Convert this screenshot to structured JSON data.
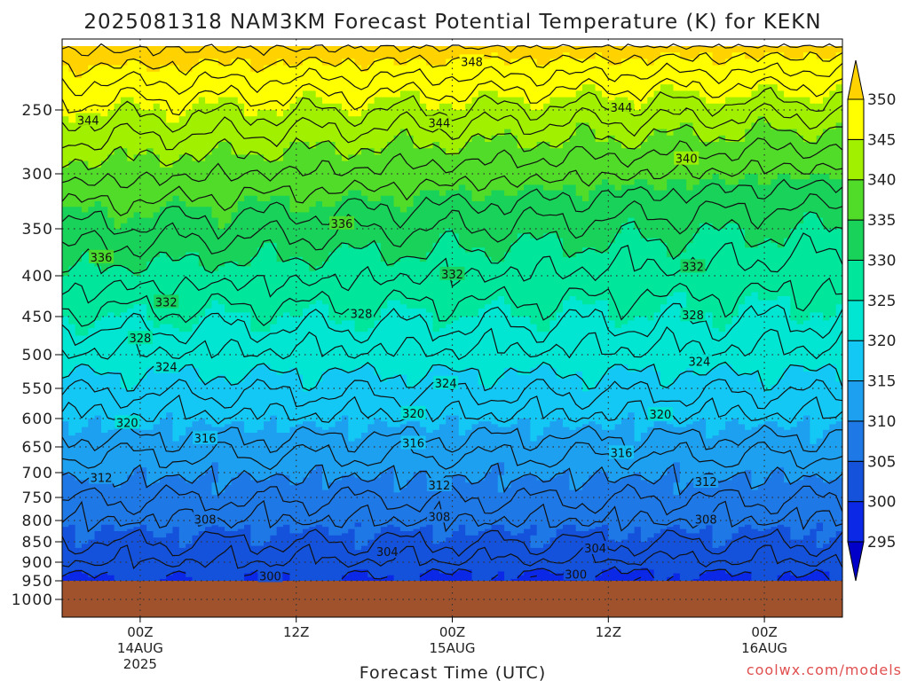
{
  "chart_data": {
    "type": "heatmap",
    "title": "2025081318 NAM3KM Forecast Potential Temperature (K) for KEKN",
    "xlabel": "Forecast Time (UTC)",
    "ylabel": "",
    "credit": "coolwx.com/models",
    "x_unit": "hours since 2025-08-13 18Z",
    "xlim": [
      0,
      60
    ],
    "y_ticks": [
      250,
      300,
      350,
      400,
      450,
      500,
      550,
      600,
      650,
      700,
      750,
      800,
      850,
      900,
      950,
      1000
    ],
    "ylim": [
      200,
      1050
    ],
    "surface_pressure": 950,
    "x_ticks": [
      {
        "x": 6,
        "lines": [
          "00Z",
          "14AUG",
          "2025"
        ]
      },
      {
        "x": 18,
        "lines": [
          "12Z"
        ]
      },
      {
        "x": 30,
        "lines": [
          "00Z",
          "15AUG"
        ]
      },
      {
        "x": 42,
        "lines": [
          "12Z"
        ]
      },
      {
        "x": 54,
        "lines": [
          "00Z",
          "16AUG"
        ]
      }
    ],
    "colorbar": {
      "levels": [
        295,
        300,
        305,
        310,
        315,
        320,
        325,
        330,
        335,
        340,
        345,
        350
      ],
      "colors": [
        "#0000c8",
        "#0a28e6",
        "#1452dc",
        "#1e78e6",
        "#1ea0f0",
        "#14c8f5",
        "#00e6d2",
        "#00e69b",
        "#19d25a",
        "#50dc28",
        "#a0f000",
        "#ffff00",
        "#ffd200"
      ]
    },
    "contour_labels": [
      {
        "value": 348,
        "x": 31.5,
        "p": 212
      },
      {
        "value": 344,
        "x": 2,
        "p": 258
      },
      {
        "value": 344,
        "x": 29,
        "p": 260
      },
      {
        "value": 344,
        "x": 43,
        "p": 248
      },
      {
        "value": 340,
        "x": 48,
        "p": 288
      },
      {
        "value": 336,
        "x": 3,
        "p": 380
      },
      {
        "value": 336,
        "x": 21.5,
        "p": 345
      },
      {
        "value": 332,
        "x": 8,
        "p": 432
      },
      {
        "value": 332,
        "x": 30,
        "p": 398
      },
      {
        "value": 332,
        "x": 48.5,
        "p": 390
      },
      {
        "value": 328,
        "x": 6,
        "p": 478
      },
      {
        "value": 328,
        "x": 23,
        "p": 446
      },
      {
        "value": 328,
        "x": 48.5,
        "p": 448
      },
      {
        "value": 324,
        "x": 8,
        "p": 518
      },
      {
        "value": 324,
        "x": 29.5,
        "p": 542
      },
      {
        "value": 324,
        "x": 49,
        "p": 510
      },
      {
        "value": 320,
        "x": 5,
        "p": 607
      },
      {
        "value": 320,
        "x": 27,
        "p": 591
      },
      {
        "value": 320,
        "x": 46,
        "p": 593
      },
      {
        "value": 316,
        "x": 11,
        "p": 634
      },
      {
        "value": 316,
        "x": 27,
        "p": 643
      },
      {
        "value": 316,
        "x": 43,
        "p": 661
      },
      {
        "value": 312,
        "x": 3,
        "p": 710
      },
      {
        "value": 312,
        "x": 29,
        "p": 725
      },
      {
        "value": 312,
        "x": 49.5,
        "p": 718
      },
      {
        "value": 308,
        "x": 11,
        "p": 797
      },
      {
        "value": 308,
        "x": 29,
        "p": 791
      },
      {
        "value": 308,
        "x": 49.5,
        "p": 797
      },
      {
        "value": 304,
        "x": 25,
        "p": 874
      },
      {
        "value": 304,
        "x": 41,
        "p": 865
      },
      {
        "value": 300,
        "x": 16,
        "p": 937
      },
      {
        "value": 300,
        "x": 39.5,
        "p": 932
      }
    ]
  }
}
